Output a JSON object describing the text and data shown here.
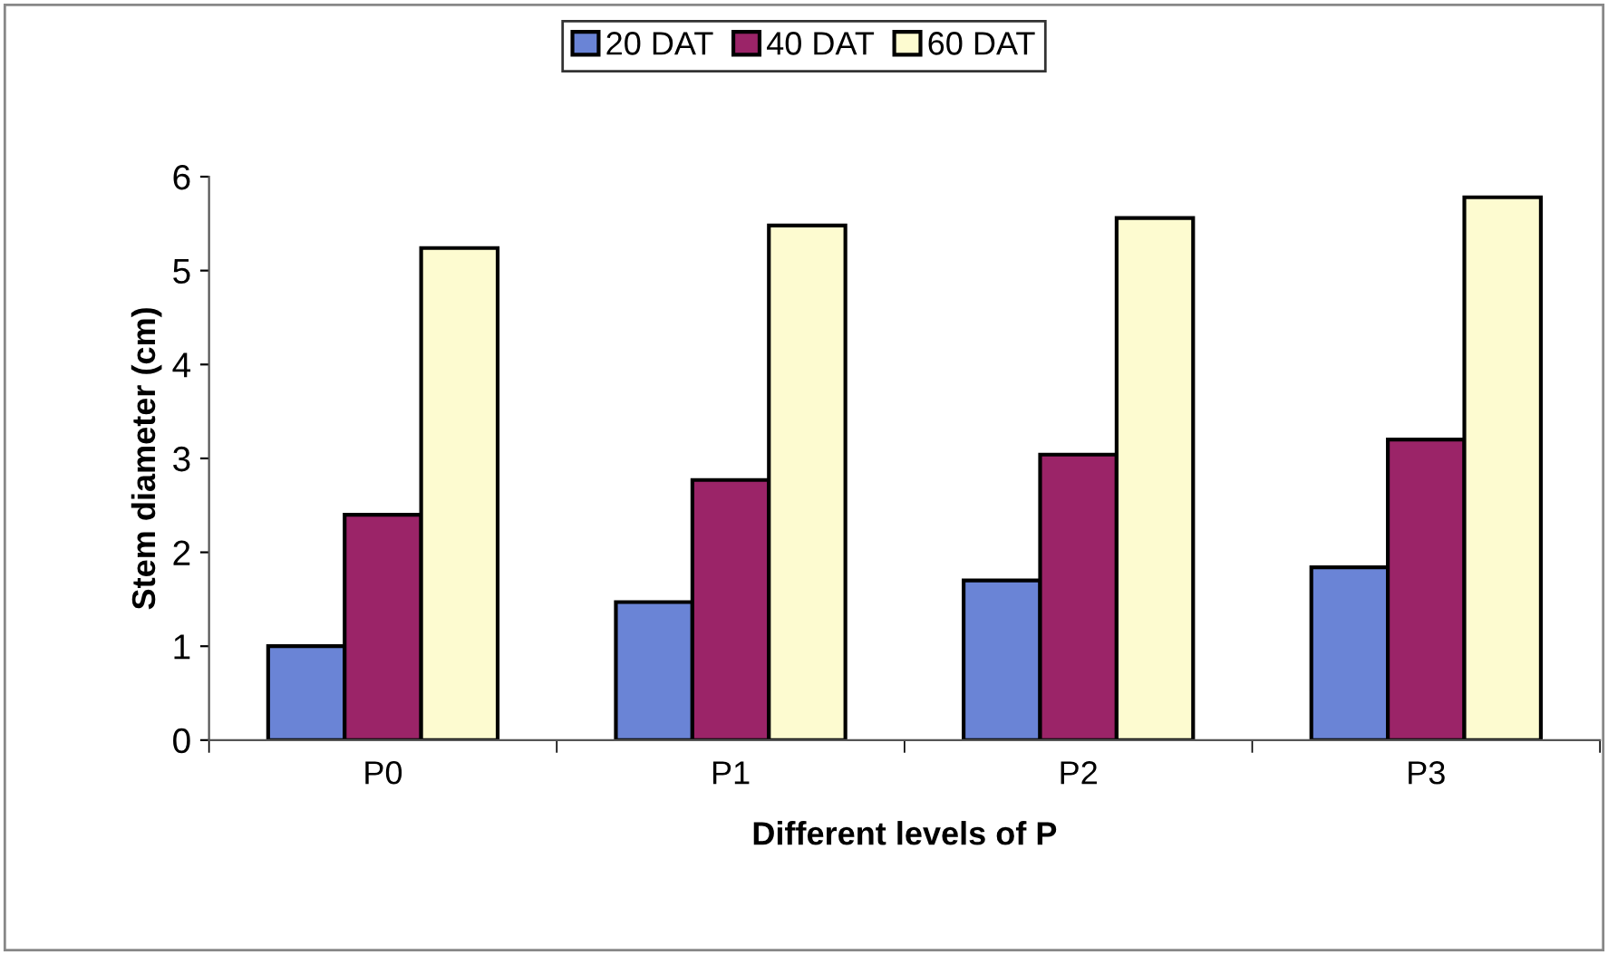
{
  "chart_data": {
    "type": "bar",
    "xlabel": "Different levels of P",
    "ylabel": "Stem diameter (cm)",
    "categories": [
      "P0",
      "P1",
      "P2",
      "P3"
    ],
    "series": [
      {
        "name": "20 DAT",
        "color": "#6a84d6",
        "values": [
          1.0,
          1.47,
          1.7,
          1.84
        ]
      },
      {
        "name": "40 DAT",
        "color": "#9b2468",
        "values": [
          2.4,
          2.77,
          3.04,
          3.2
        ]
      },
      {
        "name": "60 DAT",
        "color": "#fdfbd0",
        "values": [
          5.24,
          5.48,
          5.56,
          5.78
        ]
      }
    ],
    "ylim": [
      0,
      6
    ],
    "yticks": [
      0,
      1,
      2,
      3,
      4,
      5,
      6
    ],
    "legend": "top"
  }
}
